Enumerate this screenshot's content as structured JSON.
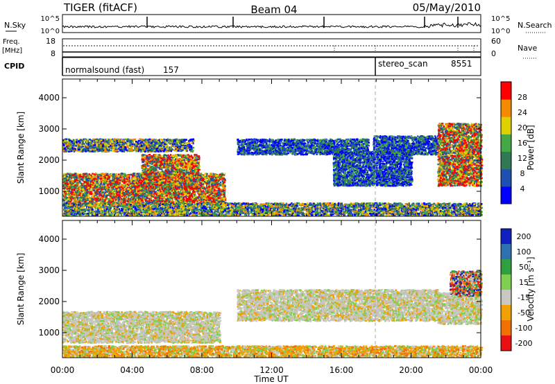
{
  "header": {
    "radar": "TIGER (fitACF)",
    "beam": "Beam 04",
    "date": "05/May/2010"
  },
  "top_panels": {
    "nsky_label": "N.Sky",
    "nsearch_label": "N.Search",
    "nsky_ticks": [
      "10^5",
      "10^0"
    ],
    "nsearch_ticks": [
      "10^5",
      "10^0"
    ],
    "freq_label": "Freq.",
    "freq_unit": "[MHz]",
    "freq_ticks": [
      18,
      8
    ],
    "nave_label": "Nave",
    "nave_ticks": [
      60,
      0
    ],
    "cpid_label": "CPID",
    "cpid_modes": [
      {
        "name": "normalsound (fast)",
        "id": "157",
        "start_hour": 0
      },
      {
        "name": "stereo_scan",
        "id": "8551",
        "start_hour": 18
      }
    ]
  },
  "chart_data": [
    {
      "type": "heatmap",
      "quantity": "Power",
      "xlabel": "Time UT",
      "ylabel": "Slant Range [km]",
      "xlim": [
        0,
        24
      ],
      "ylim": [
        200,
        4600
      ],
      "x_ticks": [
        "00:00",
        "04:00",
        "08:00",
        "12:00",
        "16:00",
        "20:00",
        "00:00"
      ],
      "y_ticks": [
        1000,
        2000,
        3000,
        4000
      ],
      "colorbar": {
        "label": "Power [dB]",
        "ticks": [
          4,
          8,
          12,
          16,
          20,
          24,
          28
        ],
        "range": [
          0,
          32
        ],
        "colors": [
          "#0000ff",
          "#1f4fb0",
          "#2f7a55",
          "#44a844",
          "#e0d000",
          "#f58a00",
          "#ff0000"
        ]
      },
      "regions": [
        {
          "t0": 0.0,
          "t1": 9.3,
          "r0": 600,
          "r1": 1600,
          "level": "high"
        },
        {
          "t0": 4.5,
          "t1": 7.8,
          "r0": 1100,
          "r1": 2200,
          "level": "high"
        },
        {
          "t0": 0.0,
          "t1": 7.5,
          "r0": 2300,
          "r1": 2700,
          "level": "medium"
        },
        {
          "t0": 10.0,
          "t1": 17.5,
          "r0": 2200,
          "r1": 2700,
          "level": "low"
        },
        {
          "t0": 15.5,
          "t1": 20.0,
          "r0": 1200,
          "r1": 2300,
          "level": "low"
        },
        {
          "t0": 17.8,
          "t1": 21.5,
          "r0": 2200,
          "r1": 2800,
          "level": "low"
        },
        {
          "t0": 21.5,
          "t1": 24.0,
          "r0": 1200,
          "r1": 3200,
          "level": "high"
        },
        {
          "t0": 0.0,
          "t1": 24.0,
          "r0": 250,
          "r1": 650,
          "level": "medium"
        }
      ]
    },
    {
      "type": "heatmap",
      "quantity": "Velocity",
      "xlabel": "Time UT",
      "ylabel": "Slant Range [km]",
      "xlim": [
        0,
        24
      ],
      "ylim": [
        200,
        4600
      ],
      "x_ticks": [
        "00:00",
        "04:00",
        "08:00",
        "12:00",
        "16:00",
        "20:00",
        "00:00"
      ],
      "y_ticks": [
        1000,
        2000,
        3000,
        4000
      ],
      "colorbar": {
        "label": "Velocity [m s⁻¹]",
        "ticks": [
          200,
          100,
          50,
          15,
          -15,
          -50,
          -100,
          -200
        ],
        "colors": [
          "#1020c0",
          "#2f70b0",
          "#2f9f3f",
          "#7fd050",
          "#c8c8c0",
          "#f0a000",
          "#f07000",
          "#e81010"
        ]
      },
      "regions": [
        {
          "t0": 0.0,
          "t1": 9.0,
          "r0": 700,
          "r1": 1700,
          "level": "ground"
        },
        {
          "t0": 0.0,
          "t1": 24.0,
          "r0": 250,
          "r1": 600,
          "level": "negative"
        },
        {
          "t0": 10.0,
          "t1": 21.5,
          "r0": 1400,
          "r1": 2400,
          "level": "ground"
        },
        {
          "t0": 21.5,
          "t1": 24.0,
          "r0": 1300,
          "r1": 2300,
          "level": "ground"
        },
        {
          "t0": 22.2,
          "t1": 24.0,
          "r0": 2200,
          "r1": 3000,
          "level": "negative_strong"
        }
      ]
    }
  ]
}
